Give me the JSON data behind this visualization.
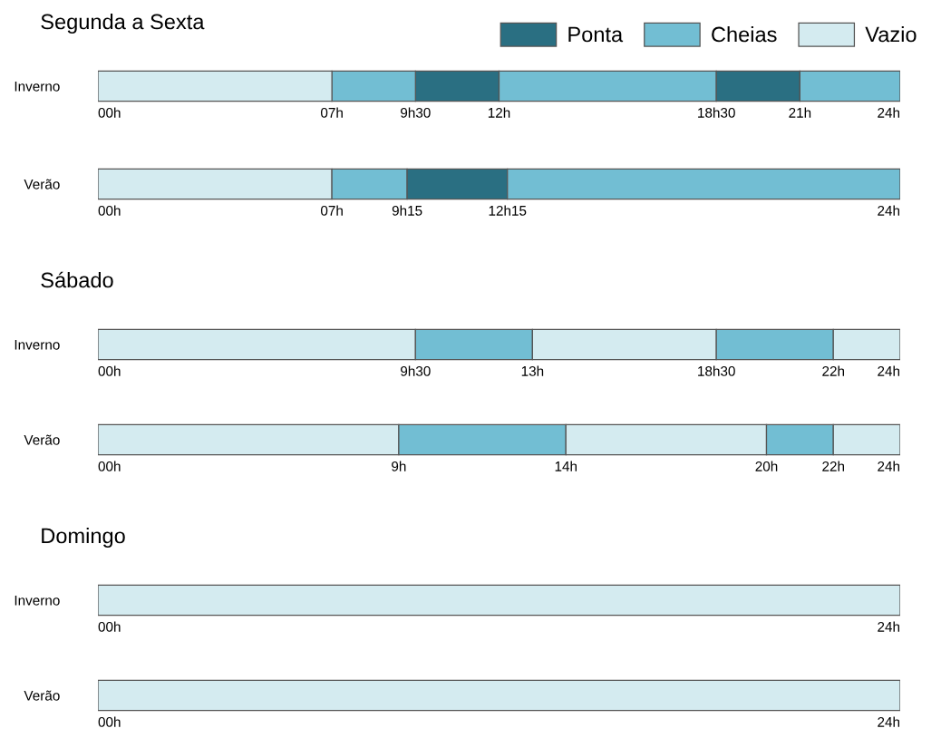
{
  "chart_data": [
    {
      "type": "bar",
      "orientation": "horizontal",
      "title": "Segunda a Sexta",
      "categories": [
        "Inverno"
      ],
      "xlim": [
        0,
        24
      ],
      "legend": "top right",
      "xticks": [
        {
          "value": 0,
          "label": "00h"
        },
        {
          "value": 7,
          "label": "07h"
        },
        {
          "value": 9.5,
          "label": "9h30"
        },
        {
          "value": 12,
          "label": "12h"
        },
        {
          "value": 18.5,
          "label": "18h30"
        },
        {
          "value": 21,
          "label": "21h"
        },
        {
          "value": 24,
          "label": "24h"
        }
      ],
      "series": [
        {
          "name": "Ponta",
          "color": "#2a6f82",
          "base": [
            9.5
          ],
          "values": [
            2.5
          ]
        },
        {
          "name": "Cheias",
          "color": "#72bed3",
          "base": [
            7
          ],
          "values": [
            2.5
          ]
        },
        {
          "name": "Vazio",
          "color": "#d4ebf0",
          "base": [
            0
          ],
          "values": [
            7
          ]
        },
        {
          "color": "#72bed3",
          "base": [
            12
          ],
          "values": [
            6.5
          ]
        },
        {
          "color": "#2a6f82",
          "base": [
            18.5
          ],
          "values": [
            2.5
          ]
        },
        {
          "color": "#72bed3",
          "base": [
            21
          ],
          "values": [
            3
          ]
        }
      ]
    },
    {
      "type": "bar",
      "orientation": "horizontal",
      "categories": [
        "Verão"
      ],
      "xlim": [
        0,
        24
      ],
      "xticks": [
        {
          "value": 0,
          "label": "00h"
        },
        {
          "value": 7,
          "label": "07h"
        },
        {
          "value": 9.25,
          "label": "9h15"
        },
        {
          "value": 12.25,
          "label": "12h15"
        },
        {
          "value": 24,
          "label": "24h"
        }
      ],
      "series": [
        {
          "color": "#d4ebf0",
          "base": [
            0
          ],
          "values": [
            7
          ]
        },
        {
          "color": "#72bed3",
          "base": [
            7
          ],
          "values": [
            2.25
          ]
        },
        {
          "color": "#2a6f82",
          "base": [
            9.25
          ],
          "values": [
            3
          ]
        },
        {
          "color": "#72bed3",
          "base": [
            12.25
          ],
          "values": [
            11.75
          ]
        }
      ]
    },
    {
      "type": "bar",
      "orientation": "horizontal",
      "title": "Sábado",
      "categories": [
        "Inverno"
      ],
      "xlim": [
        0,
        24
      ],
      "xticks": [
        {
          "value": 0,
          "label": "00h"
        },
        {
          "value": 9.5,
          "label": "9h30"
        },
        {
          "value": 13,
          "label": "13h"
        },
        {
          "value": 18.5,
          "label": "18h30"
        },
        {
          "value": 22,
          "label": "22h"
        },
        {
          "value": 24,
          "label": "24h"
        }
      ],
      "series": [
        {
          "color": "#d4ebf0",
          "base": [
            0
          ],
          "values": [
            9.5
          ]
        },
        {
          "color": "#72bed3",
          "base": [
            9.5
          ],
          "values": [
            3.5
          ]
        },
        {
          "color": "#d4ebf0",
          "base": [
            13
          ],
          "values": [
            5.5
          ]
        },
        {
          "color": "#72bed3",
          "base": [
            18.5
          ],
          "values": [
            3.5
          ]
        },
        {
          "color": "#d4ebf0",
          "base": [
            22
          ],
          "values": [
            2
          ]
        }
      ]
    },
    {
      "type": "bar",
      "orientation": "horizontal",
      "categories": [
        "Verão"
      ],
      "xlim": [
        0,
        24
      ],
      "xticks": [
        {
          "value": 0,
          "label": "00h"
        },
        {
          "value": 9,
          "label": "9h"
        },
        {
          "value": 14,
          "label": "14h"
        },
        {
          "value": 20,
          "label": "20h"
        },
        {
          "value": 22,
          "label": "22h"
        },
        {
          "value": 24,
          "label": "24h"
        }
      ],
      "series": [
        {
          "color": "#d4ebf0",
          "base": [
            0
          ],
          "values": [
            9
          ]
        },
        {
          "color": "#72bed3",
          "base": [
            9
          ],
          "values": [
            5
          ]
        },
        {
          "color": "#d4ebf0",
          "base": [
            14
          ],
          "values": [
            6
          ]
        },
        {
          "color": "#72bed3",
          "base": [
            20
          ],
          "values": [
            2
          ]
        },
        {
          "color": "#d4ebf0",
          "base": [
            22
          ],
          "values": [
            2
          ]
        }
      ]
    },
    {
      "type": "bar",
      "orientation": "horizontal",
      "title": "Domingo",
      "categories": [
        "Inverno"
      ],
      "xlim": [
        0,
        24
      ],
      "xticks": [
        {
          "value": 0,
          "label": "00h"
        },
        {
          "value": 24,
          "label": "24h"
        }
      ],
      "series": [
        {
          "color": "#d4ebf0",
          "base": [
            0
          ],
          "values": [
            24
          ]
        }
      ]
    },
    {
      "type": "bar",
      "orientation": "horizontal",
      "categories": [
        "Verão"
      ],
      "xlim": [
        0,
        24
      ],
      "xticks": [
        {
          "value": 0,
          "label": "00h"
        },
        {
          "value": 24,
          "label": "24h"
        }
      ],
      "series": [
        {
          "color": "#d4ebf0",
          "base": [
            0
          ],
          "values": [
            24
          ]
        }
      ]
    }
  ]
}
